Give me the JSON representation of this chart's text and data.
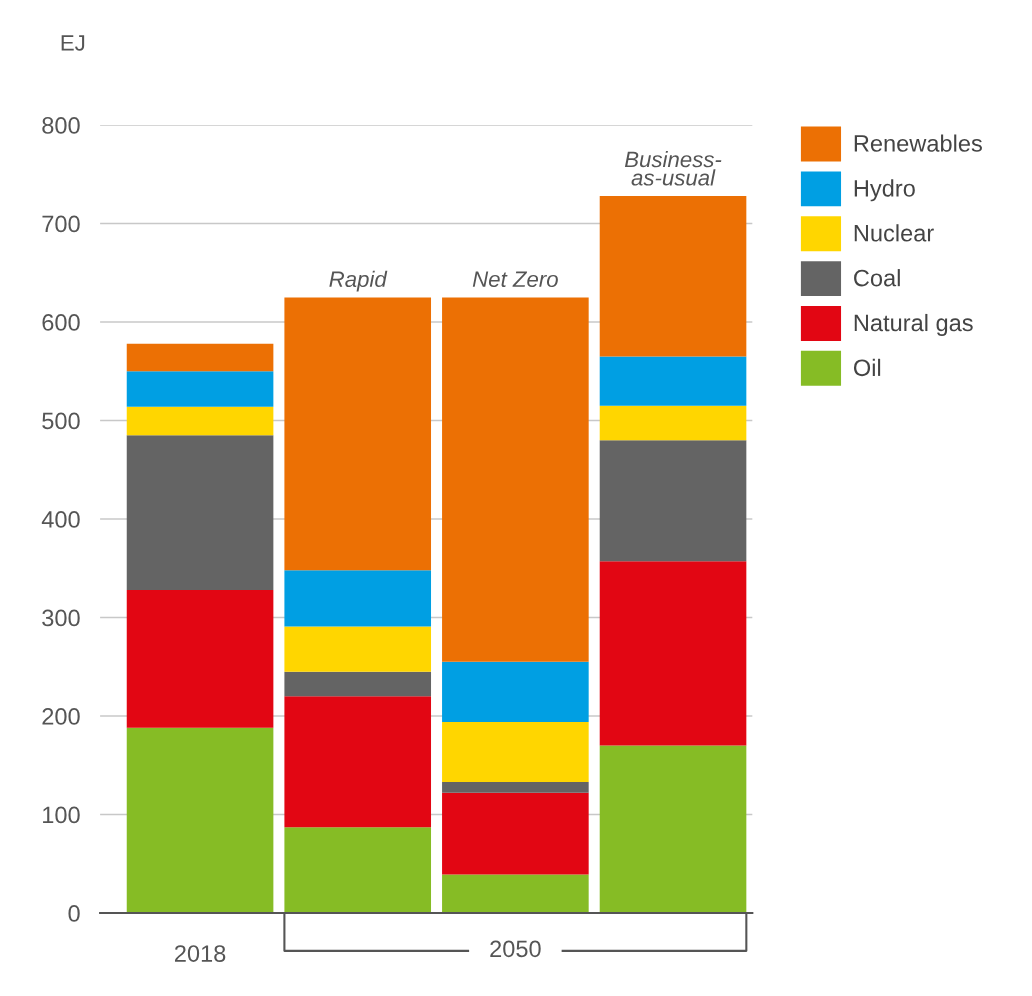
{
  "chart_data": {
    "type": "bar",
    "stacked": true,
    "ylabel": "EJ",
    "categories": [
      "2018",
      "Rapid",
      "Net Zero",
      "Business-as-usual"
    ],
    "series": [
      {
        "name": "Oil",
        "color": "#86bc25",
        "values": [
          188,
          87,
          39,
          170
        ]
      },
      {
        "name": "Natural gas",
        "color": "#e20613",
        "values": [
          140,
          133,
          83,
          187
        ]
      },
      {
        "name": "Coal",
        "color": "#646464",
        "values": [
          157,
          25,
          11,
          123
        ]
      },
      {
        "name": "Nuclear",
        "color": "#ffd600",
        "values": [
          29,
          46,
          61,
          35
        ]
      },
      {
        "name": "Hydro",
        "color": "#009fe3",
        "values": [
          36,
          57,
          61,
          50
        ]
      },
      {
        "name": "Renewables",
        "color": "#ec7004",
        "values": [
          28,
          277,
          370,
          163
        ]
      }
    ],
    "ylim": [
      0,
      800
    ],
    "yticks": [
      0,
      100,
      200,
      300,
      400,
      500,
      600,
      700,
      800
    ],
    "grid": "y",
    "legend": "top right",
    "annotations": [
      "2050"
    ]
  }
}
